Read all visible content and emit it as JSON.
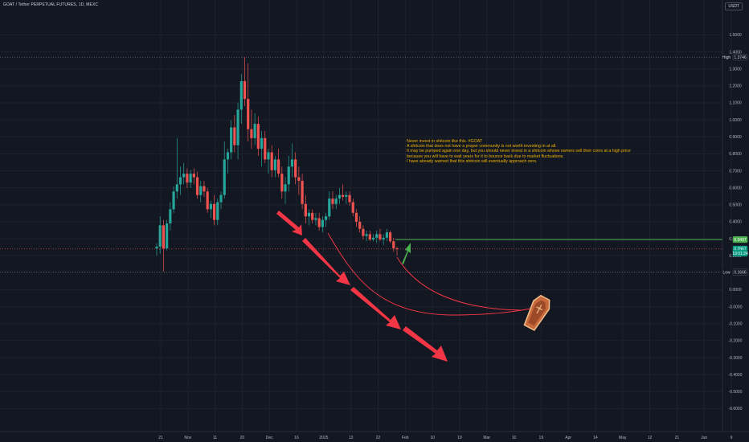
{
  "header": {
    "symbol": "GOAT / Tether PERPETUAL FUTURES, 1D, MEXC",
    "currency": "USDT"
  },
  "annotation": {
    "lines": [
      "Never invest in shitcoin like this. #GOAT",
      "A shitcoin that does not have a proper community is not worth investing in at all.",
      "It may be pumped again one day, but you should never invest in a shitcoin whose owners sell their coins at a high price",
      "because you will have to wait years for it to bounce back due to market fluctuations.",
      "I have already warned that this shitcoin will eventually approach zero."
    ]
  },
  "colors": {
    "background": "#131722",
    "up": "#26a69a",
    "down": "#ef5350",
    "grid": "#1e222d",
    "text": "#b2b5be",
    "annotation": "#f0b300",
    "target_line": "#4caf50",
    "arrow_red": "#f23645",
    "arrow_green": "#4caf50"
  },
  "chart_data": {
    "type": "candlestick",
    "interval": "1D",
    "ylim": [
      -0.6,
      1.5
    ],
    "y_ticks": [
      "1.5000",
      "1.4000",
      "1.3000",
      "1.2000",
      "1.1000",
      "1.0000",
      "0.9000",
      "0.8000",
      "0.7000",
      "0.6000",
      "0.5000",
      "0.4000",
      "0.3000",
      "0.2000",
      "0.1000",
      "0.0000",
      "-0.0000",
      "-0.1000",
      "-0.2000",
      "-0.3000",
      "-0.4000",
      "-0.5000",
      "-0.6000"
    ],
    "x_ticks": [
      "21",
      "Nov",
      "11",
      "20",
      "Dec",
      "16",
      "2025",
      "13",
      "22",
      "Feb",
      "10",
      "19",
      "Mar",
      "10",
      "19",
      "Apr",
      "14",
      "May",
      "12",
      "21",
      "Jun",
      "9"
    ],
    "price_labels": [
      {
        "label": "High",
        "value": "1.3746",
        "price": 1.3746,
        "style": "high"
      },
      {
        "label": "",
        "value": "0.3497",
        "price": 0.3497,
        "style": "target"
      },
      {
        "label": "",
        "value": "0.2967",
        "price": 0.2967,
        "style": "current"
      },
      {
        "label": "",
        "value": "19:01:24",
        "price": 0.273,
        "style": "countdown"
      },
      {
        "label": "Low",
        "value": "0.1666",
        "price": 0.1666,
        "style": "low"
      }
    ],
    "horizontal_levels": [
      {
        "name": "high",
        "price": 1.3746
      },
      {
        "name": "target",
        "price": 0.3497
      },
      {
        "name": "current",
        "price": 0.2967
      },
      {
        "name": "low",
        "price": 0.1666
      }
    ],
    "candles": [
      [
        0.3,
        0.33,
        0.26,
        0.31
      ],
      [
        0.31,
        0.48,
        0.27,
        0.43
      ],
      [
        0.43,
        0.46,
        0.17,
        0.3
      ],
      [
        0.3,
        0.46,
        0.29,
        0.44
      ],
      [
        0.44,
        0.56,
        0.4,
        0.52
      ],
      [
        0.52,
        0.65,
        0.5,
        0.62
      ],
      [
        0.62,
        0.92,
        0.58,
        0.66
      ],
      [
        0.66,
        0.76,
        0.6,
        0.7
      ],
      [
        0.7,
        0.78,
        0.66,
        0.72
      ],
      [
        0.72,
        0.75,
        0.64,
        0.67
      ],
      [
        0.67,
        0.74,
        0.64,
        0.72
      ],
      [
        0.72,
        0.75,
        0.66,
        0.7
      ],
      [
        0.7,
        0.73,
        0.58,
        0.6
      ],
      [
        0.6,
        0.68,
        0.56,
        0.65
      ],
      [
        0.65,
        0.68,
        0.59,
        0.62
      ],
      [
        0.62,
        0.64,
        0.5,
        0.52
      ],
      [
        0.52,
        0.57,
        0.47,
        0.55
      ],
      [
        0.55,
        0.6,
        0.43,
        0.46
      ],
      [
        0.46,
        0.58,
        0.43,
        0.56
      ],
      [
        0.56,
        0.62,
        0.52,
        0.6
      ],
      [
        0.6,
        0.9,
        0.58,
        0.8
      ],
      [
        0.8,
        0.86,
        0.72,
        0.84
      ],
      [
        0.84,
        1.02,
        0.8,
        0.98
      ],
      [
        0.98,
        1.05,
        0.84,
        0.88
      ],
      [
        0.88,
        1.12,
        0.8,
        1.08
      ],
      [
        1.08,
        1.28,
        1.0,
        1.24
      ],
      [
        1.24,
        1.3746,
        1.1,
        1.14
      ],
      [
        1.14,
        1.34,
        0.9,
        0.97
      ],
      [
        0.97,
        1.08,
        0.86,
        0.92
      ],
      [
        0.92,
        1.06,
        0.88,
        1.0
      ],
      [
        1.0,
        1.04,
        0.82,
        0.86
      ],
      [
        0.86,
        0.96,
        0.76,
        0.92
      ],
      [
        0.92,
        0.96,
        0.78,
        0.8
      ],
      [
        0.8,
        0.86,
        0.72,
        0.84
      ],
      [
        0.84,
        0.88,
        0.7,
        0.74
      ],
      [
        0.74,
        0.82,
        0.7,
        0.8
      ],
      [
        0.8,
        0.86,
        0.7,
        0.72
      ],
      [
        0.72,
        0.76,
        0.58,
        0.62
      ],
      [
        0.62,
        0.7,
        0.55,
        0.66
      ],
      [
        0.66,
        0.82,
        0.62,
        0.76
      ],
      [
        0.76,
        0.89,
        0.7,
        0.8
      ],
      [
        0.8,
        0.84,
        0.66,
        0.7
      ],
      [
        0.7,
        0.76,
        0.6,
        0.68
      ],
      [
        0.68,
        0.72,
        0.52,
        0.55
      ],
      [
        0.55,
        0.6,
        0.44,
        0.48
      ],
      [
        0.48,
        0.52,
        0.43,
        0.5
      ],
      [
        0.5,
        0.52,
        0.44,
        0.46
      ],
      [
        0.46,
        0.5,
        0.43,
        0.47
      ],
      [
        0.47,
        0.5,
        0.4,
        0.42
      ],
      [
        0.42,
        0.48,
        0.39,
        0.46
      ],
      [
        0.46,
        0.5,
        0.42,
        0.48
      ],
      [
        0.48,
        0.62,
        0.46,
        0.58
      ],
      [
        0.58,
        0.62,
        0.52,
        0.55
      ],
      [
        0.55,
        0.6,
        0.52,
        0.58
      ],
      [
        0.58,
        0.64,
        0.55,
        0.6
      ],
      [
        0.6,
        0.66,
        0.57,
        0.59
      ],
      [
        0.59,
        0.62,
        0.55,
        0.6
      ],
      [
        0.6,
        0.62,
        0.54,
        0.56
      ],
      [
        0.56,
        0.58,
        0.48,
        0.5
      ],
      [
        0.5,
        0.52,
        0.42,
        0.45
      ],
      [
        0.45,
        0.48,
        0.39,
        0.41
      ],
      [
        0.41,
        0.43,
        0.35,
        0.37
      ],
      [
        0.37,
        0.4,
        0.34,
        0.38
      ],
      [
        0.38,
        0.4,
        0.34,
        0.35
      ],
      [
        0.35,
        0.38,
        0.34,
        0.36
      ],
      [
        0.36,
        0.4,
        0.33,
        0.38
      ],
      [
        0.38,
        0.41,
        0.34,
        0.35
      ],
      [
        0.35,
        0.38,
        0.32,
        0.36
      ],
      [
        0.36,
        0.41,
        0.34,
        0.39
      ],
      [
        0.39,
        0.4,
        0.33,
        0.34
      ],
      [
        0.34,
        0.36,
        0.28,
        0.3
      ],
      [
        0.3,
        0.31,
        0.26,
        0.2967
      ]
    ],
    "annotation_price": 0.86
  }
}
